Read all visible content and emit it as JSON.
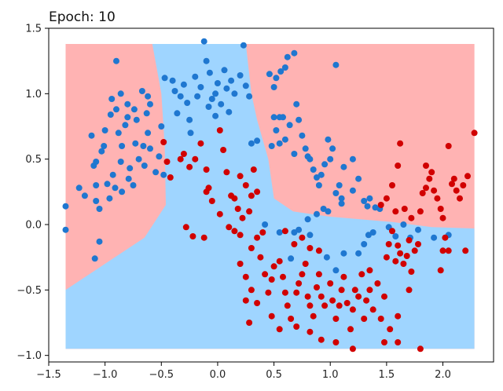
{
  "chart_data": {
    "type": "scatter",
    "title": "Epoch: 10",
    "xlabel": "",
    "ylabel": "",
    "xlim": [
      -1.5,
      2.45
    ],
    "ylim": [
      -1.05,
      1.5
    ],
    "x_ticks": [
      -1.5,
      -1.0,
      -0.5,
      0.0,
      0.5,
      1.0,
      1.5,
      2.0
    ],
    "x_tick_labels": [
      "−1.5",
      "−1.0",
      "−0.5",
      "0.0",
      "0.5",
      "1.0",
      "1.5",
      "2.0"
    ],
    "y_ticks": [
      1.5,
      1.0,
      0.5,
      0.0,
      -0.5,
      -1.0
    ],
    "y_tick_labels": [
      "1.5",
      "1.0",
      "0.5",
      "0.0",
      "−0.5",
      "−1.0"
    ],
    "grid": false,
    "legend": "none",
    "colors": {
      "class_0_point": "#1f77d0",
      "class_1_point": "#d10000",
      "region_class_0": "#9fd5ff",
      "region_class_1": "#ffb3b3"
    },
    "decision_regions": {
      "extent": {
        "x": [
          -1.35,
          2.28
        ],
        "y": [
          -0.95,
          1.38
        ]
      },
      "class_0_polygon": [
        [
          -1.35,
          -0.95
        ],
        [
          2.28,
          -0.95
        ],
        [
          2.28,
          -0.03
        ],
        [
          1.9,
          -0.02
        ],
        [
          1.55,
          0.02
        ],
        [
          1.0,
          0.06
        ],
        [
          0.67,
          0.1
        ],
        [
          0.5,
          0.2
        ],
        [
          0.45,
          0.5
        ],
        [
          0.35,
          0.8
        ],
        [
          0.3,
          1.0
        ],
        [
          0.25,
          1.38
        ],
        [
          -0.58,
          1.38
        ],
        [
          -0.5,
          1.0
        ],
        [
          -0.47,
          0.6
        ],
        [
          -0.46,
          0.15
        ],
        [
          -0.65,
          -0.1
        ],
        [
          -1.0,
          -0.3
        ],
        [
          -1.35,
          -0.5
        ]
      ]
    },
    "series": [
      {
        "class": 0,
        "points": [
          [
            -1.35,
            0.14
          ],
          [
            -1.35,
            -0.04
          ],
          [
            -1.23,
            0.28
          ],
          [
            -1.18,
            0.22
          ],
          [
            -1.12,
            0.68
          ],
          [
            -1.1,
            0.45
          ],
          [
            -1.08,
            0.3
          ],
          [
            -1.08,
            0.18
          ],
          [
            -1.05,
            0.12
          ],
          [
            -1.09,
            -0.26
          ],
          [
            -1.05,
            -0.13
          ],
          [
            -1.08,
            0.48
          ],
          [
            -1.03,
            0.56
          ],
          [
            -1.01,
            0.6
          ],
          [
            -1.0,
            0.72
          ],
          [
            -0.98,
            0.31
          ],
          [
            -0.96,
            0.2
          ],
          [
            -0.95,
            0.84
          ],
          [
            -0.94,
            0.96
          ],
          [
            -0.93,
            0.38
          ],
          [
            -0.91,
            0.28
          ],
          [
            -0.9,
            0.88
          ],
          [
            -0.88,
            0.7
          ],
          [
            -0.86,
            0.48
          ],
          [
            -0.85,
            0.6
          ],
          [
            -0.85,
            0.25
          ],
          [
            -0.82,
            0.76
          ],
          [
            -0.8,
            0.92
          ],
          [
            -0.79,
            0.35
          ],
          [
            -0.78,
            0.43
          ],
          [
            -0.75,
            0.3
          ],
          [
            -0.73,
            0.62
          ],
          [
            -0.72,
            0.8
          ],
          [
            -0.7,
            0.5
          ],
          [
            -0.67,
            1.02
          ],
          [
            -0.66,
            0.6
          ],
          [
            -0.65,
            0.45
          ],
          [
            -0.63,
            0.85
          ],
          [
            -0.62,
            0.7
          ],
          [
            -0.6,
            0.92
          ],
          [
            -0.55,
            0.4
          ],
          [
            -0.52,
            0.52
          ],
          [
            -0.5,
            0.75
          ],
          [
            -0.48,
            0.38
          ],
          [
            -0.86,
            1.0
          ],
          [
            -0.9,
            1.25
          ],
          [
            -0.62,
            0.98
          ],
          [
            -0.74,
            0.88
          ],
          [
            -0.8,
            0.82
          ],
          [
            -0.6,
            0.58
          ],
          [
            -0.47,
            1.12
          ],
          [
            -0.4,
            1.1
          ],
          [
            -0.38,
            1.02
          ],
          [
            -0.33,
            0.98
          ],
          [
            -0.36,
            0.85
          ],
          [
            -0.3,
            1.07
          ],
          [
            -0.27,
            0.93
          ],
          [
            -0.25,
            0.8
          ],
          [
            -0.24,
            0.7
          ],
          [
            -0.2,
            1.13
          ],
          [
            -0.18,
            0.98
          ],
          [
            -0.15,
            1.05
          ],
          [
            -0.12,
            1.4
          ],
          [
            -0.1,
            1.25
          ],
          [
            -0.07,
            1.16
          ],
          [
            -0.05,
            0.96
          ],
          [
            -0.02,
            1.0
          ],
          [
            0.0,
            1.08
          ],
          [
            0.03,
            0.92
          ],
          [
            0.06,
            1.18
          ],
          [
            0.08,
            1.04
          ],
          [
            0.12,
            1.1
          ],
          [
            0.15,
            1.0
          ],
          [
            0.2,
            1.14
          ],
          [
            0.23,
            1.37
          ],
          [
            0.25,
            1.06
          ],
          [
            0.28,
            0.98
          ],
          [
            0.1,
            0.86
          ],
          [
            -0.08,
            0.9
          ],
          [
            -0.02,
            0.83
          ],
          [
            0.3,
            0.62
          ],
          [
            0.35,
            0.64
          ],
          [
            0.55,
            0.62
          ],
          [
            0.6,
            0.65
          ],
          [
            0.48,
            0.6
          ],
          [
            0.52,
            0.72
          ],
          [
            0.55,
            0.82
          ],
          [
            0.5,
            1.05
          ],
          [
            0.52,
            1.12
          ],
          [
            0.56,
            1.17
          ],
          [
            0.6,
            1.2
          ],
          [
            0.62,
            1.28
          ],
          [
            0.68,
            1.31
          ],
          [
            0.7,
            0.92
          ],
          [
            0.72,
            0.8
          ],
          [
            0.75,
            0.68
          ],
          [
            0.78,
            0.58
          ],
          [
            0.8,
            0.52
          ],
          [
            0.82,
            0.5
          ],
          [
            0.85,
            0.42
          ],
          [
            0.88,
            0.36
          ],
          [
            0.9,
            0.3
          ],
          [
            0.92,
            0.38
          ],
          [
            0.95,
            0.46
          ],
          [
            0.98,
            0.65
          ],
          [
            1.0,
            0.5
          ],
          [
            1.02,
            0.58
          ],
          [
            1.05,
            0.24
          ],
          [
            1.08,
            0.3
          ],
          [
            1.1,
            0.16
          ],
          [
            1.12,
            0.44
          ],
          [
            1.05,
            1.22
          ],
          [
            1.1,
            0.2
          ],
          [
            0.94,
            0.12
          ],
          [
            0.72,
            -0.04
          ],
          [
            0.8,
            0.04
          ],
          [
            0.98,
            0.1
          ],
          [
            1.25,
            0.35
          ],
          [
            1.2,
            0.26
          ],
          [
            0.88,
            0.08
          ],
          [
            0.58,
            0.82
          ],
          [
            0.64,
            0.76
          ],
          [
            0.68,
            0.54
          ],
          [
            0.5,
            0.82
          ],
          [
            0.46,
            1.15
          ],
          [
            1.3,
            0.18
          ],
          [
            1.35,
            0.2
          ],
          [
            1.4,
            0.13
          ],
          [
            1.44,
            0.12
          ],
          [
            1.2,
            0.5
          ],
          [
            1.33,
            0.14
          ],
          [
            0.42,
            0.0
          ],
          [
            0.55,
            -0.06
          ],
          [
            0.68,
            -0.06
          ],
          [
            0.82,
            -0.08
          ],
          [
            0.65,
            -0.26
          ],
          [
            1.58,
            -0.09
          ],
          [
            1.52,
            -0.02
          ],
          [
            1.65,
            0.0
          ],
          [
            1.3,
            -0.15
          ],
          [
            1.25,
            -0.22
          ],
          [
            0.97,
            -0.25
          ],
          [
            1.05,
            -0.35
          ],
          [
            1.12,
            -0.22
          ],
          [
            1.34,
            -0.08
          ],
          [
            1.78,
            -0.04
          ],
          [
            1.92,
            -0.1
          ],
          [
            2.05,
            -0.08
          ],
          [
            1.71,
            -0.1
          ],
          [
            1.38,
            -0.06
          ]
        ]
      },
      {
        "class": 1,
        "points": [
          [
            0.02,
            0.72
          ],
          [
            0.05,
            0.57
          ],
          [
            -0.1,
            0.42
          ],
          [
            -0.15,
            0.62
          ],
          [
            -0.25,
            0.44
          ],
          [
            -0.3,
            0.54
          ],
          [
            -0.42,
            0.36
          ],
          [
            -0.33,
            0.5
          ],
          [
            -0.45,
            0.48
          ],
          [
            -0.48,
            0.63
          ],
          [
            -0.2,
            0.5
          ],
          [
            0.08,
            0.4
          ],
          [
            0.15,
            0.2
          ],
          [
            0.2,
            0.37
          ],
          [
            0.25,
            0.3
          ],
          [
            0.3,
            0.22
          ],
          [
            0.32,
            0.42
          ],
          [
            0.35,
            0.25
          ],
          [
            0.28,
            0.1
          ],
          [
            0.22,
            0.05
          ],
          [
            0.18,
            0.12
          ],
          [
            0.12,
            0.22
          ],
          [
            -0.08,
            0.28
          ],
          [
            -0.05,
            0.18
          ],
          [
            -0.1,
            0.25
          ],
          [
            -0.12,
            -0.1
          ],
          [
            0.3,
            -0.18
          ],
          [
            0.35,
            -0.1
          ],
          [
            0.4,
            -0.06
          ],
          [
            0.38,
            -0.25
          ],
          [
            0.42,
            -0.38
          ],
          [
            0.45,
            -0.52
          ],
          [
            0.48,
            -0.42
          ],
          [
            0.5,
            -0.32
          ],
          [
            0.55,
            -0.28
          ],
          [
            0.58,
            -0.4
          ],
          [
            0.6,
            -0.52
          ],
          [
            0.62,
            -0.62
          ],
          [
            0.65,
            -0.72
          ],
          [
            0.7,
            -0.52
          ],
          [
            0.72,
            -0.45
          ],
          [
            0.75,
            -0.38
          ],
          [
            0.78,
            -0.3
          ],
          [
            0.8,
            -0.55
          ],
          [
            0.82,
            -0.62
          ],
          [
            0.85,
            -0.7
          ],
          [
            0.88,
            -0.48
          ],
          [
            0.9,
            -0.38
          ],
          [
            0.92,
            -0.55
          ],
          [
            0.95,
            -0.62
          ],
          [
            1.0,
            -0.45
          ],
          [
            1.02,
            -0.58
          ],
          [
            1.05,
            -0.72
          ],
          [
            1.08,
            -0.62
          ],
          [
            1.1,
            -0.5
          ],
          [
            1.12,
            -0.4
          ],
          [
            1.15,
            -0.6
          ],
          [
            1.18,
            -0.8
          ],
          [
            1.2,
            -0.65
          ],
          [
            1.22,
            -0.5
          ],
          [
            1.25,
            -0.55
          ],
          [
            1.28,
            -0.38
          ],
          [
            1.3,
            -0.72
          ],
          [
            1.32,
            -0.58
          ],
          [
            1.35,
            -0.5
          ],
          [
            1.38,
            -0.65
          ],
          [
            1.42,
            -0.45
          ],
          [
            1.45,
            -0.72
          ],
          [
            1.48,
            -0.55
          ],
          [
            1.5,
            -0.25
          ],
          [
            1.52,
            -0.15
          ],
          [
            1.55,
            -0.05
          ],
          [
            1.58,
            -0.28
          ],
          [
            1.6,
            -0.16
          ],
          [
            1.62,
            -0.22
          ],
          [
            1.65,
            -0.3
          ],
          [
            1.68,
            -0.24
          ],
          [
            1.7,
            -0.12
          ],
          [
            1.72,
            -0.36
          ],
          [
            1.75,
            -0.2
          ],
          [
            1.78,
            -0.15
          ],
          [
            1.8,
            0.1
          ],
          [
            1.82,
            0.24
          ],
          [
            1.85,
            0.28
          ],
          [
            1.88,
            0.35
          ],
          [
            1.9,
            0.4
          ],
          [
            1.92,
            0.26
          ],
          [
            1.95,
            0.2
          ],
          [
            1.98,
            0.12
          ],
          [
            2.0,
            0.05
          ],
          [
            2.02,
            -0.1
          ],
          [
            2.05,
            -0.2
          ],
          [
            2.08,
            0.31
          ],
          [
            2.1,
            0.35
          ],
          [
            2.12,
            0.26
          ],
          [
            2.15,
            0.2
          ],
          [
            2.18,
            0.3
          ],
          [
            2.22,
            0.37
          ],
          [
            2.28,
            0.7
          ],
          [
            2.2,
            -0.2
          ],
          [
            2.0,
            -0.2
          ],
          [
            1.98,
            -0.35
          ],
          [
            2.05,
            0.6
          ],
          [
            1.85,
            0.45
          ],
          [
            1.62,
            0.62
          ],
          [
            1.6,
            0.45
          ],
          [
            1.72,
            0.05
          ],
          [
            1.66,
            0.12
          ],
          [
            1.58,
            0.1
          ],
          [
            1.55,
            0.3
          ],
          [
            1.5,
            0.2
          ],
          [
            1.45,
            0.15
          ],
          [
            1.48,
            -0.9
          ],
          [
            1.53,
            -0.8
          ],
          [
            1.6,
            -0.7
          ],
          [
            1.7,
            -0.5
          ],
          [
            1.2,
            -0.95
          ],
          [
            1.05,
            -0.9
          ],
          [
            0.92,
            -0.88
          ],
          [
            0.82,
            -0.82
          ],
          [
            0.7,
            -0.78
          ],
          [
            0.55,
            -0.8
          ],
          [
            0.48,
            -0.7
          ],
          [
            0.35,
            -0.6
          ],
          [
            0.3,
            -0.5
          ],
          [
            0.25,
            -0.4
          ],
          [
            0.2,
            -0.3
          ],
          [
            0.2,
            -0.08
          ],
          [
            0.15,
            -0.05
          ],
          [
            0.1,
            -0.02
          ],
          [
            0.25,
            -0.58
          ],
          [
            0.28,
            -0.75
          ],
          [
            1.35,
            -0.35
          ],
          [
            1.6,
            -0.9
          ],
          [
            1.8,
            -0.95
          ],
          [
            0.6,
            -0.05
          ],
          [
            0.68,
            -0.15
          ],
          [
            0.75,
            -0.1
          ],
          [
            0.82,
            -0.18
          ],
          [
            0.9,
            -0.2
          ],
          [
            -0.22,
            -0.09
          ],
          [
            -0.28,
            -0.02
          ],
          [
            0.02,
            0.08
          ]
        ]
      }
    ]
  }
}
